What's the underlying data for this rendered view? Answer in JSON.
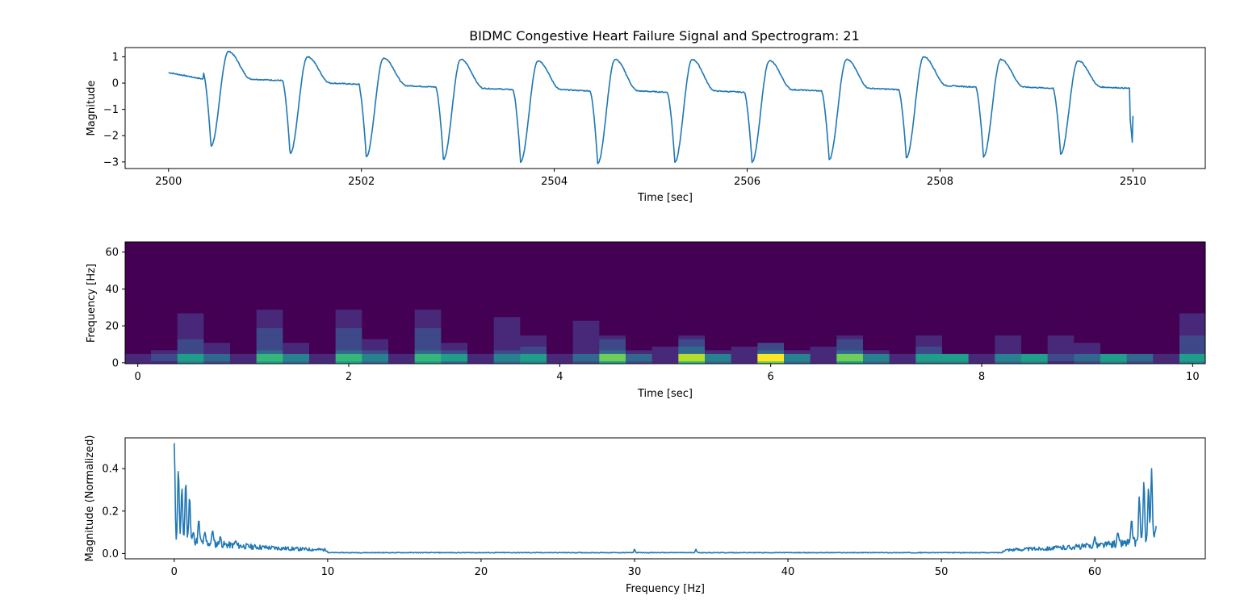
{
  "title": "BIDMC Congestive Heart Failure Signal and Spectrogram: 21",
  "colors": {
    "series": "#1f77b4",
    "viridis": [
      "#440154",
      "#482878",
      "#3e4989",
      "#31688e",
      "#26828e",
      "#1f9e89",
      "#35b779",
      "#6ece58",
      "#b5de2b",
      "#fde725"
    ]
  },
  "chart_data": [
    {
      "id": "signal",
      "type": "line",
      "title": "BIDMC Congestive Heart Failure Signal and Spectrogram: 21",
      "xlabel": "Time [sec]",
      "ylabel": "Magnitude",
      "xlim": [
        2499.55,
        2510.75
      ],
      "ylim": [
        -3.25,
        1.35
      ],
      "xticks": [
        2500,
        2502,
        2504,
        2506,
        2508,
        2510
      ],
      "xtick_labels": [
        "2500",
        "2502",
        "2504",
        "2506",
        "2508",
        "2510"
      ],
      "yticks": [
        1,
        0,
        -1,
        -2,
        -3
      ],
      "ytick_labels": [
        "1",
        "0",
        "−1",
        "−2",
        "−3"
      ],
      "grid": false,
      "x_start": 2500.0,
      "x_end": 2510.0,
      "initial_value": 0.4,
      "end_value": -1.25,
      "beats": [
        {
          "t": 2500.44,
          "min": -2.4,
          "peak": 1.2,
          "plateau": 0.1
        },
        {
          "t": 2501.26,
          "min": -2.7,
          "peak": 1.0,
          "plateau": -0.05
        },
        {
          "t": 2502.05,
          "min": -2.8,
          "peak": 0.95,
          "plateau": -0.15
        },
        {
          "t": 2502.85,
          "min": -2.9,
          "peak": 0.9,
          "plateau": -0.25
        },
        {
          "t": 2503.65,
          "min": -3.0,
          "peak": 0.85,
          "plateau": -0.3
        },
        {
          "t": 2504.45,
          "min": -3.05,
          "peak": 0.9,
          "plateau": -0.35
        },
        {
          "t": 2505.25,
          "min": -3.0,
          "peak": 0.9,
          "plateau": -0.35
        },
        {
          "t": 2506.05,
          "min": -3.0,
          "peak": 0.85,
          "plateau": -0.3
        },
        {
          "t": 2506.85,
          "min": -2.9,
          "peak": 0.9,
          "plateau": -0.25
        },
        {
          "t": 2507.65,
          "min": -2.85,
          "peak": 1.0,
          "plateau": -0.15
        },
        {
          "t": 2508.45,
          "min": -2.8,
          "peak": 0.9,
          "plateau": -0.2
        },
        {
          "t": 2509.25,
          "min": -2.7,
          "peak": 0.85,
          "plateau": -0.2
        },
        {
          "t": 2510.0,
          "min": -2.6,
          "peak": 0.0,
          "plateau": -0.2
        }
      ]
    },
    {
      "id": "spectrogram",
      "type": "heatmap",
      "xlabel": "Time [sec]",
      "ylabel": "Frequency [Hz]",
      "xlim": [
        -0.12,
        10.12
      ],
      "ylim": [
        -0.5,
        65.5
      ],
      "xticks": [
        0,
        2,
        4,
        6,
        8,
        10
      ],
      "xtick_labels": [
        "0",
        "2",
        "4",
        "6",
        "8",
        "10"
      ],
      "yticks": [
        0,
        20,
        40,
        60
      ],
      "ytick_labels": [
        "0",
        "20",
        "40",
        "60"
      ],
      "time_bins": [
        0.0,
        0.25,
        0.5,
        0.75,
        1.0,
        1.25,
        1.5,
        1.75,
        2.0,
        2.25,
        2.5,
        2.75,
        3.0,
        3.25,
        3.5,
        3.75,
        4.0,
        4.25,
        4.5,
        4.75,
        5.0,
        5.25,
        5.5,
        5.75,
        6.0,
        6.25,
        6.5,
        6.75,
        7.0,
        7.25,
        7.5,
        7.75,
        8.0,
        8.25,
        8.5,
        8.75,
        9.0,
        9.25,
        9.5,
        9.75,
        10.0
      ],
      "frequency_bins": [
        0,
        2,
        4,
        6,
        8,
        10,
        12,
        14,
        16,
        18,
        20,
        22,
        24,
        26,
        28,
        30,
        32,
        34,
        36,
        38,
        40,
        42,
        44,
        46,
        48,
        50,
        52,
        54,
        56,
        58,
        60,
        62,
        64
      ],
      "beat_intensity": [
        0.1,
        0.2,
        0.55,
        0.35,
        0.1,
        0.7,
        0.4,
        0.1,
        0.7,
        0.45,
        0.1,
        0.7,
        0.5,
        0.15,
        0.4,
        0.55,
        0.1,
        0.35,
        0.8,
        0.35,
        0.15,
        0.85,
        0.4,
        0.15,
        1.0,
        0.4,
        0.15,
        0.8,
        0.45,
        0.1,
        0.6,
        0.55,
        0.1,
        0.4,
        0.55,
        0.2,
        0.35,
        0.55,
        0.3,
        0.1,
        0.6
      ],
      "band_reach_hz": [
        4,
        10,
        30,
        10,
        4,
        30,
        10,
        4,
        30,
        12,
        4,
        30,
        10,
        6,
        30,
        15,
        4,
        30,
        15,
        6,
        30,
        15,
        6,
        30,
        10,
        6,
        30,
        15,
        6,
        30,
        15,
        4,
        30,
        15,
        4,
        30,
        10,
        4,
        4,
        4,
        30
      ]
    },
    {
      "id": "fft",
      "type": "line",
      "xlabel": "Frequency [Hz]",
      "ylabel": "Magnitude (Normalized)",
      "xlim": [
        -3.2,
        67.2
      ],
      "ylim": [
        -0.025,
        0.545
      ],
      "xticks": [
        0,
        10,
        20,
        30,
        40,
        50,
        60
      ],
      "xtick_labels": [
        "0",
        "10",
        "20",
        "30",
        "40",
        "50",
        "60"
      ],
      "yticks": [
        0.0,
        0.2,
        0.4
      ],
      "ytick_labels": [
        "0.0",
        "0.2",
        "0.4"
      ],
      "grid": false,
      "frequency_range": [
        0,
        64
      ],
      "peaks": [
        {
          "f": 0.0,
          "value": 0.52
        },
        {
          "f": 0.27,
          "value": 0.4
        },
        {
          "f": 0.5,
          "value": 0.31
        },
        {
          "f": 0.75,
          "value": 0.34
        },
        {
          "f": 1.0,
          "value": 0.27
        },
        {
          "f": 1.25,
          "value": 0.1
        },
        {
          "f": 1.6,
          "value": 0.16
        },
        {
          "f": 2.0,
          "value": 0.1
        },
        {
          "f": 2.5,
          "value": 0.11
        },
        {
          "f": 3.0,
          "value": 0.08
        },
        {
          "f": 4.0,
          "value": 0.06
        },
        {
          "f": 30.0,
          "value": 0.02
        },
        {
          "f": 34.0,
          "value": 0.02
        },
        {
          "f": 60.0,
          "value": 0.08
        },
        {
          "f": 61.5,
          "value": 0.1
        },
        {
          "f": 62.4,
          "value": 0.16
        },
        {
          "f": 62.9,
          "value": 0.27
        },
        {
          "f": 63.2,
          "value": 0.34
        },
        {
          "f": 63.5,
          "value": 0.31
        },
        {
          "f": 63.7,
          "value": 0.4
        },
        {
          "f": 64.0,
          "value": 0.13
        }
      ]
    }
  ]
}
